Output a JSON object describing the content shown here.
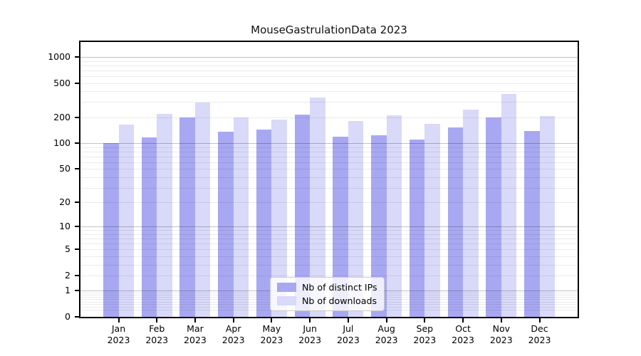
{
  "title": "MouseGastrulationData 2023",
  "chart_data": {
    "type": "bar",
    "title": "MouseGastrulationData 2023",
    "xlabel": "",
    "ylabel": "",
    "scale": "log1p",
    "grid": true,
    "legend_position": "lower center",
    "categories": [
      "Jan",
      "Feb",
      "Mar",
      "Apr",
      "May",
      "Jun",
      "Jul",
      "Aug",
      "Sep",
      "Oct",
      "Nov",
      "Dec"
    ],
    "year": "2023",
    "series": [
      {
        "name": "Nb of distinct IPs",
        "color": "#a8a8f2",
        "values": [
          100,
          118,
          200,
          135,
          143,
          215,
          119,
          123,
          110,
          152,
          198,
          140
        ]
      },
      {
        "name": "Nb of downloads",
        "color": "#d9d9f9",
        "values": [
          165,
          218,
          295,
          200,
          188,
          340,
          181,
          210,
          168,
          248,
          370,
          207
        ]
      }
    ],
    "yticks": [
      0,
      1,
      2,
      5,
      10,
      20,
      50,
      100,
      200,
      500,
      1000
    ],
    "ylim": [
      0,
      1480
    ]
  }
}
